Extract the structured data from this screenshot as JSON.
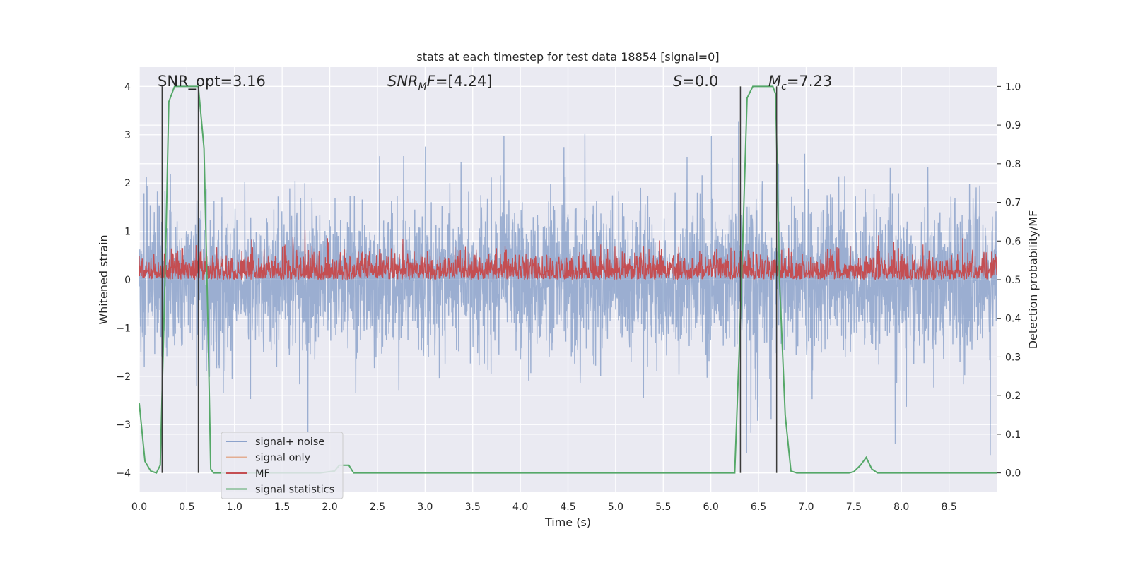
{
  "chart_data": {
    "type": "line",
    "title": "stats at each timestep for test data 18854 [signal=0]",
    "xlabel": "Time (s)",
    "ylabel_left": "Whitened strain",
    "ylabel_right": "Detection probability/MF",
    "xlim": [
      0.0,
      9.0
    ],
    "ylim_left": [
      -4.4,
      4.4
    ],
    "ylim_right": [
      -0.05,
      1.05
    ],
    "grid": true,
    "x_ticks": [
      0.0,
      0.5,
      1.0,
      1.5,
      2.0,
      2.5,
      3.0,
      3.5,
      4.0,
      4.5,
      5.0,
      5.5,
      6.0,
      6.5,
      7.0,
      7.5,
      8.0,
      8.5
    ],
    "x_tick_labels": [
      "0.0",
      "0.5",
      "1.0",
      "1.5",
      "2.0",
      "2.5",
      "3.0",
      "3.5",
      "4.0",
      "4.5",
      "5.0",
      "5.5",
      "6.0",
      "6.5",
      "7.0",
      "7.5",
      "8.0",
      "8.5"
    ],
    "y_left_ticks": [
      -4,
      -3,
      -2,
      -1,
      0,
      1,
      2,
      3,
      4
    ],
    "y_left_tick_labels": [
      "−4",
      "−3",
      "−2",
      "−1",
      "0",
      "1",
      "2",
      "3",
      "4"
    ],
    "y_right_ticks": [
      0.0,
      0.1,
      0.2,
      0.3,
      0.4,
      0.5,
      0.6,
      0.7,
      0.8,
      0.9,
      1.0
    ],
    "y_right_tick_labels": [
      "0.0",
      "0.1",
      "0.2",
      "0.3",
      "0.4",
      "0.5",
      "0.6",
      "0.7",
      "0.8",
      "0.9",
      "1.0"
    ],
    "annotations": [
      {
        "text": "SNR_opt=3.16"
      },
      {
        "text": "SNR",
        "italic": true,
        "sub": "M",
        "rest_italic": "F",
        "tail": "=[4.24]"
      },
      {
        "text": "S",
        "italic": true,
        "tail": "=0.0"
      },
      {
        "text": "M",
        "italic": true,
        "sub": "c",
        "tail": "=7.23"
      }
    ],
    "series": [
      {
        "name": "signal+ noise",
        "color": "#4c72b0",
        "axis": "left",
        "kind": "noise",
        "amplitude_typical": 1.6,
        "amplitude_max": 4.0,
        "points_per_second": 400
      },
      {
        "name": "signal only",
        "color": "#dd8452",
        "axis": "left",
        "kind": "flat",
        "values": []
      },
      {
        "name": "MF",
        "color": "#c44e52",
        "axis": "right",
        "kind": "noise",
        "baseline": 0.5,
        "amplitude_typical": 0.55,
        "amplitude_max": 0.63,
        "points_per_second": 300
      },
      {
        "name": "signal statistics",
        "color": "#55a868",
        "axis": "right",
        "x": [
          0.0,
          0.06,
          0.12,
          0.18,
          0.22,
          0.25,
          0.28,
          0.31,
          0.37,
          0.43,
          0.5,
          0.56,
          0.62,
          0.68,
          0.72,
          0.75,
          0.78,
          0.84,
          1.0,
          1.5,
          1.9,
          2.05,
          2.1,
          2.2,
          2.25,
          2.4,
          3.0,
          4.0,
          5.0,
          6.0,
          6.25,
          6.31,
          6.38,
          6.44,
          6.55,
          6.65,
          6.68,
          6.72,
          6.78,
          6.84,
          6.9,
          7.2,
          7.45,
          7.5,
          7.57,
          7.63,
          7.69,
          7.75,
          8.0,
          9.0
        ],
        "values": [
          0.18,
          0.03,
          0.005,
          0.0,
          0.02,
          0.3,
          0.6,
          0.96,
          1.0,
          1.0,
          1.0,
          1.0,
          1.0,
          0.84,
          0.4,
          0.01,
          0.0,
          0.0,
          0.0,
          0.0,
          0.0,
          0.005,
          0.02,
          0.02,
          0.0,
          0.0,
          0.0,
          0.0,
          0.0,
          0.0,
          0.0,
          0.4,
          0.97,
          1.0,
          1.0,
          1.0,
          0.98,
          0.5,
          0.15,
          0.005,
          0.0,
          0.0,
          0.0,
          0.003,
          0.02,
          0.04,
          0.01,
          0.0,
          0.0,
          0.0
        ]
      }
    ],
    "vertical_lines": [
      {
        "x": 0.24,
        "y": [
          -4.0,
          4.0
        ],
        "color": "#3a3a3a"
      },
      {
        "x": 0.62,
        "y": [
          -4.0,
          4.0
        ],
        "color": "#3a3a3a"
      },
      {
        "x": 6.31,
        "y": [
          -4.0,
          4.0
        ],
        "color": "#3a3a3a"
      },
      {
        "x": 6.69,
        "y": [
          -4.0,
          4.0
        ],
        "color": "#3a3a3a"
      }
    ],
    "legend": {
      "position": "lower-left"
    }
  }
}
